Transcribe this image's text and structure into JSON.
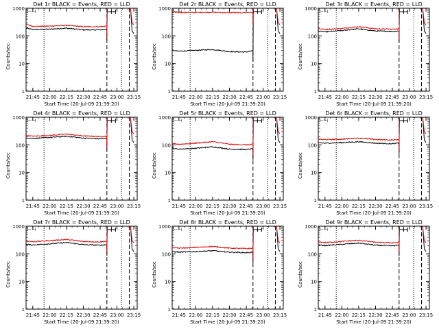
{
  "figure": {
    "colors": {
      "events": "#000000",
      "lld": "#e00000",
      "axis": "#000000",
      "background": "#ffffff"
    },
    "ylabel": "Counts/sec",
    "xlabel": "Start Time (20-Jul-09 21:39:20)",
    "x_tick_labels": [
      "21:45",
      "22:00",
      "22:15",
      "22:30",
      "22:45",
      "23:00",
      "23:15"
    ],
    "y_tick_labels": [
      "1",
      "10",
      "100",
      "1000"
    ]
  },
  "chart_data": [
    {
      "type": "line",
      "title": "Det 1r BLACK = Events, RED = LLD",
      "xlabel": "Start Time (20-Jul-09 21:39:20)",
      "ylabel": "Counts/sec",
      "y_scale": "log",
      "ylim": [
        1,
        1000
      ],
      "xlim": [
        "21:39",
        "23:18"
      ],
      "x": [
        "21:39",
        "21:45",
        "22:00",
        "22:15",
        "22:30",
        "22:45",
        "22:51"
      ],
      "series": [
        {
          "name": "Events",
          "color": "#000000",
          "values": [
            190,
            170,
            175,
            190,
            165,
            165,
            175
          ]
        },
        {
          "name": "LLD",
          "color": "#e00000",
          "values": [
            260,
            220,
            225,
            240,
            215,
            215,
            230
          ]
        }
      ]
    },
    {
      "type": "line",
      "title": "Det 2r BLACK = Events, RED = LLD",
      "xlabel": "Start Time (20-Jul-09 21:39:20)",
      "ylabel": "Counts/sec",
      "y_scale": "log",
      "ylim": [
        1,
        1000
      ],
      "xlim": [
        "21:39",
        "23:18"
      ],
      "x": [
        "21:39",
        "21:45",
        "22:00",
        "22:15",
        "22:30",
        "22:45",
        "22:51"
      ],
      "series": [
        {
          "name": "Events",
          "color": "#000000",
          "values": [
            30,
            28,
            30,
            32,
            27,
            26,
            29
          ]
        },
        {
          "name": "LLD",
          "color": "#e00000",
          "values": [
            720,
            700,
            700,
            710,
            690,
            690,
            700
          ]
        }
      ]
    },
    {
      "type": "line",
      "title": "Det 3r BLACK = Events, RED = LLD",
      "xlabel": "Start Time (20-Jul-09 21:39:20)",
      "ylabel": "Counts/sec",
      "y_scale": "log",
      "ylim": [
        1,
        1000
      ],
      "xlim": [
        "21:39",
        "23:18"
      ],
      "x": [
        "21:39",
        "21:45",
        "22:00",
        "22:15",
        "22:30",
        "22:45",
        "22:51"
      ],
      "series": [
        {
          "name": "Events",
          "color": "#000000",
          "values": [
            150,
            140,
            155,
            180,
            150,
            145,
            150
          ]
        },
        {
          "name": "LLD",
          "color": "#e00000",
          "values": [
            185,
            170,
            185,
            215,
            180,
            175,
            180
          ]
        }
      ]
    },
    {
      "type": "line",
      "title": "Det 4r BLACK = Events, RED = LLD",
      "xlabel": "Start Time (20-Jul-09 21:39:20)",
      "ylabel": "Counts/sec",
      "y_scale": "log",
      "ylim": [
        1,
        1000
      ],
      "xlim": [
        "21:39",
        "23:18"
      ],
      "x": [
        "21:39",
        "21:45",
        "22:00",
        "22:15",
        "22:30",
        "22:45",
        "22:51"
      ],
      "series": [
        {
          "name": "Events",
          "color": "#000000",
          "values": [
            180,
            170,
            185,
            205,
            175,
            165,
            170
          ]
        },
        {
          "name": "LLD",
          "color": "#e00000",
          "values": [
            220,
            205,
            220,
            245,
            210,
            200,
            205
          ]
        }
      ]
    },
    {
      "type": "line",
      "title": "Det 5r BLACK = Events, RED = LLD",
      "xlabel": "Start Time (20-Jul-09 21:39:20)",
      "ylabel": "Counts/sec",
      "y_scale": "log",
      "ylim": [
        1,
        1000
      ],
      "xlim": [
        "21:39",
        "23:18"
      ],
      "x": [
        "21:39",
        "21:45",
        "22:00",
        "22:15",
        "22:30",
        "22:45",
        "22:51"
      ],
      "series": [
        {
          "name": "Events",
          "color": "#000000",
          "values": [
            75,
            70,
            75,
            85,
            70,
            68,
            72
          ]
        },
        {
          "name": "LLD",
          "color": "#e00000",
          "values": [
            110,
            105,
            115,
            130,
            105,
            100,
            105
          ]
        }
      ]
    },
    {
      "type": "line",
      "title": "Det 6r BLACK = Events, RED = LLD",
      "xlabel": "Start Time (20-Jul-09 21:39:20)",
      "ylabel": "Counts/sec",
      "y_scale": "log",
      "ylim": [
        1,
        1000
      ],
      "xlim": [
        "21:39",
        "23:18"
      ],
      "x": [
        "21:39",
        "21:45",
        "22:00",
        "22:15",
        "22:30",
        "22:45",
        "22:51"
      ],
      "series": [
        {
          "name": "Events",
          "color": "#000000",
          "values": [
            120,
            115,
            120,
            130,
            115,
            110,
            115
          ]
        },
        {
          "name": "LLD",
          "color": "#e00000",
          "values": [
            160,
            155,
            160,
            175,
            155,
            150,
            155
          ]
        }
      ]
    },
    {
      "type": "line",
      "title": "Det 7r BLACK = Events, RED = LLD",
      "xlabel": "Start Time (20-Jul-09 21:39:20)",
      "ylabel": "Counts/sec",
      "y_scale": "log",
      "ylim": [
        1,
        1000
      ],
      "xlim": [
        "21:39",
        "23:18"
      ],
      "x": [
        "21:39",
        "21:45",
        "22:00",
        "22:15",
        "22:30",
        "22:45",
        "22:51"
      ],
      "series": [
        {
          "name": "Events",
          "color": "#000000",
          "values": [
            220,
            210,
            230,
            255,
            215,
            205,
            215
          ]
        },
        {
          "name": "LLD",
          "color": "#e00000",
          "values": [
            290,
            275,
            300,
            330,
            280,
            270,
            285
          ]
        }
      ]
    },
    {
      "type": "line",
      "title": "Det 8r BLACK = Events, RED = LLD",
      "xlabel": "Start Time (20-Jul-09 21:39:20)",
      "ylabel": "Counts/sec",
      "y_scale": "log",
      "ylim": [
        1,
        1000
      ],
      "xlim": [
        "21:39",
        "23:18"
      ],
      "x": [
        "21:39",
        "21:45",
        "22:00",
        "22:15",
        "22:30",
        "22:45",
        "22:51"
      ],
      "series": [
        {
          "name": "Events",
          "color": "#000000",
          "values": [
            120,
            115,
            120,
            130,
            115,
            110,
            115
          ]
        },
        {
          "name": "LLD",
          "color": "#e00000",
          "values": [
            170,
            160,
            170,
            185,
            160,
            155,
            160
          ]
        }
      ]
    },
    {
      "type": "line",
      "title": "Det 9r BLACK = Events, RED = LLD",
      "xlabel": "Start Time (20-Jul-09 21:39:20)",
      "ylabel": "Counts/sec",
      "y_scale": "log",
      "ylim": [
        1,
        1000
      ],
      "xlim": [
        "21:39",
        "23:18"
      ],
      "x": [
        "21:39",
        "21:45",
        "22:00",
        "22:15",
        "22:30",
        "22:45",
        "22:51"
      ],
      "series": [
        {
          "name": "Events",
          "color": "#000000",
          "values": [
            210,
            200,
            220,
            245,
            205,
            195,
            205
          ]
        },
        {
          "name": "LLD",
          "color": "#e00000",
          "values": [
            270,
            255,
            280,
            310,
            260,
            250,
            265
          ]
        }
      ]
    }
  ]
}
